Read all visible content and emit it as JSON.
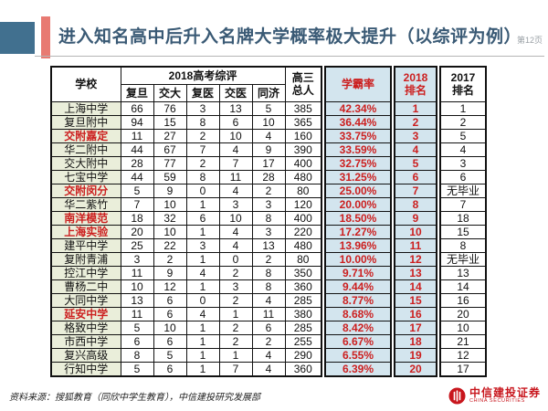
{
  "slide": {
    "title": "进入知名高中后升入名牌大学概率极大提升（以综评为例）",
    "page_number": "第12页",
    "source_note": "资料来源：搜狐教育（同欣中学生教育），中信建投研究发展部",
    "logo": {
      "name_cn": "中信建投证券",
      "name_en": "CHINA SECURITIES"
    }
  },
  "colors": {
    "accent_blue_bar": "#41708f",
    "accent_red_bar": "#e87a72",
    "title_text": "#3a5a75",
    "highlight_red": "#cc1f1f",
    "school_column_bg": "#eaeeda",
    "highlight_column_bg": "#d3e5ee",
    "logo_red": "#c8161d"
  },
  "table": {
    "header": {
      "school": "学校",
      "group_2018": "2018高考综评",
      "sub_columns": [
        "复旦",
        "交大",
        "复医",
        "交医",
        "同济"
      ],
      "total_line1": "高三",
      "total_line2": "总人",
      "rate": "学霸率",
      "rank2018_line1": "2018",
      "rank2018_line2": "排名",
      "rank2017_line1": "2017",
      "rank2017_line2": "排名"
    },
    "rows": [
      {
        "school": "上海中学",
        "red": false,
        "fudan": "66",
        "jiaoda": "76",
        "fuyi": "3",
        "jiaoyi": "13",
        "tongji": "5",
        "total": "385",
        "rate": "42.34%",
        "rank2018": "1",
        "rank2017": "1"
      },
      {
        "school": "复旦附中",
        "red": false,
        "fudan": "94",
        "jiaoda": "15",
        "fuyi": "8",
        "jiaoyi": "6",
        "tongji": "10",
        "total": "365",
        "rate": "36.44%",
        "rank2018": "2",
        "rank2017": "2"
      },
      {
        "school": "交附嘉定",
        "red": true,
        "fudan": "11",
        "jiaoda": "27",
        "fuyi": "2",
        "jiaoyi": "10",
        "tongji": "4",
        "total": "160",
        "rate": "33.75%",
        "rank2018": "3",
        "rank2017": "5"
      },
      {
        "school": "华二附中",
        "red": false,
        "fudan": "44",
        "jiaoda": "67",
        "fuyi": "7",
        "jiaoyi": "4",
        "tongji": "9",
        "total": "390",
        "rate": "33.59%",
        "rank2018": "4",
        "rank2017": "4"
      },
      {
        "school": "交大附中",
        "red": false,
        "fudan": "28",
        "jiaoda": "77",
        "fuyi": "2",
        "jiaoyi": "7",
        "tongji": "17",
        "total": "400",
        "rate": "32.75%",
        "rank2018": "5",
        "rank2017": "3"
      },
      {
        "school": "七宝中学",
        "red": false,
        "fudan": "44",
        "jiaoda": "59",
        "fuyi": "8",
        "jiaoyi": "11",
        "tongji": "28",
        "total": "480",
        "rate": "31.25%",
        "rank2018": "6",
        "rank2017": "6"
      },
      {
        "school": "交附闵分",
        "red": true,
        "fudan": "5",
        "jiaoda": "9",
        "fuyi": "0",
        "jiaoyi": "4",
        "tongji": "2",
        "total": "80",
        "rate": "25.00%",
        "rank2018": "7",
        "rank2017": "无毕业"
      },
      {
        "school": "华二紫竹",
        "red": false,
        "fudan": "7",
        "jiaoda": "10",
        "fuyi": "1",
        "jiaoyi": "3",
        "tongji": "3",
        "total": "120",
        "rate": "20.00%",
        "rank2018": "8",
        "rank2017": "7"
      },
      {
        "school": "南洋模范",
        "red": true,
        "fudan": "18",
        "jiaoda": "32",
        "fuyi": "6",
        "jiaoyi": "10",
        "tongji": "8",
        "total": "400",
        "rate": "18.50%",
        "rank2018": "9",
        "rank2017": "18"
      },
      {
        "school": "上海实验",
        "red": true,
        "fudan": "20",
        "jiaoda": "10",
        "fuyi": "1",
        "jiaoyi": "4",
        "tongji": "3",
        "total": "220",
        "rate": "17.27%",
        "rank2018": "10",
        "rank2017": "15"
      },
      {
        "school": "建平中学",
        "red": false,
        "fudan": "25",
        "jiaoda": "22",
        "fuyi": "3",
        "jiaoyi": "4",
        "tongji": "13",
        "total": "480",
        "rate": "13.96%",
        "rank2018": "11",
        "rank2017": "8"
      },
      {
        "school": "复附青浦",
        "red": false,
        "fudan": "3",
        "jiaoda": "2",
        "fuyi": "1",
        "jiaoyi": "0",
        "tongji": "2",
        "total": "80",
        "rate": "10.00%",
        "rank2018": "12",
        "rank2017": "无毕业"
      },
      {
        "school": "控江中学",
        "red": false,
        "fudan": "11",
        "jiaoda": "9",
        "fuyi": "4",
        "jiaoyi": "2",
        "tongji": "8",
        "total": "350",
        "rate": "9.71%",
        "rank2018": "13",
        "rank2017": "13"
      },
      {
        "school": "曹杨二中",
        "red": false,
        "fudan": "10",
        "jiaoda": "12",
        "fuyi": "1",
        "jiaoyi": "3",
        "tongji": "8",
        "total": "360",
        "rate": "9.44%",
        "rank2018": "14",
        "rank2017": "14"
      },
      {
        "school": "大同中学",
        "red": false,
        "fudan": "13",
        "jiaoda": "6",
        "fuyi": "0",
        "jiaoyi": "2",
        "tongji": "4",
        "total": "285",
        "rate": "8.77%",
        "rank2018": "15",
        "rank2017": "16"
      },
      {
        "school": "延安中学",
        "red": true,
        "fudan": "11",
        "jiaoda": "6",
        "fuyi": "4",
        "jiaoyi": "1",
        "tongji": "11",
        "total": "380",
        "rate": "8.68%",
        "rank2018": "16",
        "rank2017": "20"
      },
      {
        "school": "格致中学",
        "red": false,
        "fudan": "5",
        "jiaoda": "10",
        "fuyi": "1",
        "jiaoyi": "2",
        "tongji": "6",
        "total": "285",
        "rate": "8.42%",
        "rank2018": "17",
        "rank2017": "10"
      },
      {
        "school": "市西中学",
        "red": false,
        "fudan": "6",
        "jiaoda": "6",
        "fuyi": "1",
        "jiaoyi": "2",
        "tongji": "2",
        "total": "255",
        "rate": "6.67%",
        "rank2018": "18",
        "rank2017": "21"
      },
      {
        "school": "复兴高级",
        "red": false,
        "fudan": "8",
        "jiaoda": "5",
        "fuyi": "1",
        "jiaoyi": "1",
        "tongji": "4",
        "total": "290",
        "rate": "6.55%",
        "rank2018": "19",
        "rank2017": "12"
      },
      {
        "school": "行知中学",
        "red": false,
        "fudan": "5",
        "jiaoda": "6",
        "fuyi": "1",
        "jiaoyi": "7",
        "tongji": "4",
        "total": "360",
        "rate": "6.39%",
        "rank2018": "20",
        "rank2017": "17"
      }
    ]
  }
}
